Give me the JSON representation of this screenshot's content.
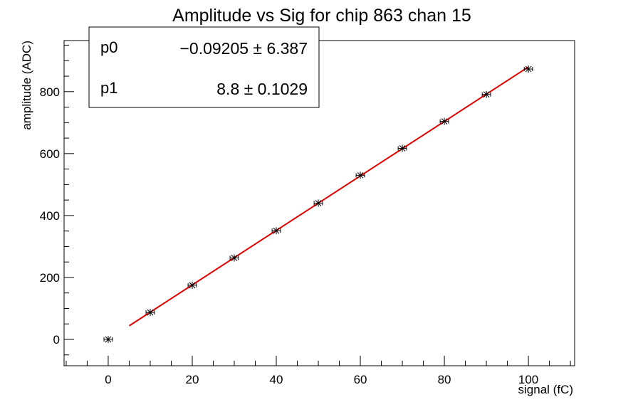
{
  "chart_data": {
    "type": "scatter",
    "title": "Amplitude vs Sig for chip 863 chan 15",
    "xlabel": "signal (fC)",
    "ylabel": "amplitude (ADC)",
    "xlim": [
      -10.5,
      111
    ],
    "ylim": [
      -85,
      965
    ],
    "x_ticks": [
      0,
      20,
      40,
      60,
      80,
      100
    ],
    "x_tick_labels": [
      "0",
      "20",
      "40",
      "60",
      "80",
      "100"
    ],
    "y_ticks": [
      0,
      200,
      400,
      600,
      800
    ],
    "y_tick_labels": [
      "0",
      "200",
      "400",
      "600",
      "800"
    ],
    "grid": false,
    "series": [
      {
        "x": [
          0,
          10,
          20,
          30,
          40,
          50,
          60,
          70,
          80,
          90,
          100
        ],
        "y": [
          0,
          87,
          175,
          263,
          351,
          440,
          530,
          617,
          704,
          791,
          873
        ],
        "x_err": 1,
        "color": "#000000"
      }
    ],
    "fit": {
      "x_range": [
        5,
        100
      ],
      "p0": -0.09205,
      "p1": 8.8,
      "color": "#e00000"
    },
    "stats_box": {
      "position": "top-left",
      "rows": [
        {
          "name": "p0",
          "value": "−0.09205 ± 6.387"
        },
        {
          "name": "p1",
          "value": "8.8 ± 0.1029"
        }
      ]
    }
  }
}
